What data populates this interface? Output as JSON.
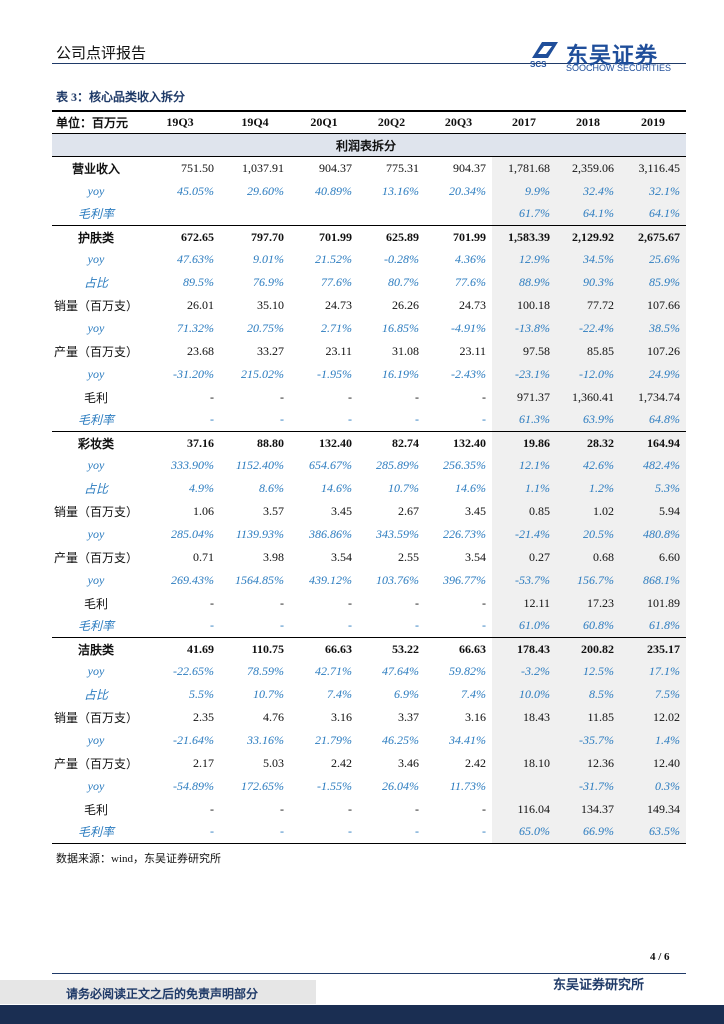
{
  "header": {
    "title": "公司点评报告",
    "logo_mark": "SCS",
    "logo_name": "东吴证券",
    "logo_en": "SOOCHOW SECURITIES"
  },
  "table": {
    "caption": "表 3：核心品类收入拆分",
    "columns": [
      "单位：百万元",
      "19Q3",
      "19Q4",
      "20Q1",
      "20Q2",
      "20Q3",
      "2017",
      "2018",
      "2019"
    ],
    "section": "利润表拆分",
    "rows": [
      {
        "label": "营业收入",
        "style": "bold-label",
        "cells": [
          "751.50",
          "1,037.91",
          "904.37",
          "775.31",
          "904.37",
          "1,781.68",
          "2,359.06",
          "3,116.45"
        ]
      },
      {
        "label": "yoy",
        "style": "italic",
        "cells": [
          "45.05%",
          "29.60%",
          "40.89%",
          "13.16%",
          "20.34%",
          "9.9%",
          "32.4%",
          "32.1%"
        ]
      },
      {
        "label": "毛利率",
        "style": "italic",
        "cells": [
          null,
          null,
          null,
          null,
          null,
          "61.7%",
          "64.1%",
          "64.1%"
        ]
      },
      {
        "label": "护肤类",
        "style": "bold",
        "cells": [
          "672.65",
          "797.70",
          "701.99",
          "625.89",
          "701.99",
          "1,583.39",
          "2,129.92",
          "2,675.67"
        ]
      },
      {
        "label": "yoy",
        "style": "italic",
        "cells": [
          "47.63%",
          "9.01%",
          "21.52%",
          "-0.28%",
          "4.36%",
          "12.9%",
          "34.5%",
          "25.6%"
        ]
      },
      {
        "label": "占比",
        "style": "italic",
        "cells": [
          "89.5%",
          "76.9%",
          "77.6%",
          "80.7%",
          "77.6%",
          "88.9%",
          "90.3%",
          "85.9%"
        ]
      },
      {
        "label": "销量（百万支）",
        "style": "plain",
        "cells": [
          "26.01",
          "35.10",
          "24.73",
          "26.26",
          "24.73",
          "100.18",
          "77.72",
          "107.66"
        ]
      },
      {
        "label": "yoy",
        "style": "italic",
        "cells": [
          "71.32%",
          "20.75%",
          "2.71%",
          "16.85%",
          "-4.91%",
          "-13.8%",
          "-22.4%",
          "38.5%"
        ]
      },
      {
        "label": "产量（百万支）",
        "style": "plain",
        "cells": [
          "23.68",
          "33.27",
          "23.11",
          "31.08",
          "23.11",
          "97.58",
          "85.85",
          "107.26"
        ]
      },
      {
        "label": "yoy",
        "style": "italic",
        "cells": [
          "-31.20%",
          "215.02%",
          "-1.95%",
          "16.19%",
          "-2.43%",
          "-23.1%",
          "-12.0%",
          "24.9%"
        ]
      },
      {
        "label": "毛利",
        "style": "plain",
        "cells": [
          "-",
          "-",
          "-",
          "-",
          "-",
          "971.37",
          "1,360.41",
          "1,734.74"
        ]
      },
      {
        "label": "毛利率",
        "style": "italic",
        "cells": [
          "-",
          "-",
          "-",
          "-",
          "-",
          "61.3%",
          "63.9%",
          "64.8%"
        ]
      },
      {
        "label": "彩妆类",
        "style": "bold",
        "cells": [
          "37.16",
          "88.80",
          "132.40",
          "82.74",
          "132.40",
          "19.86",
          "28.32",
          "164.94"
        ]
      },
      {
        "label": "yoy",
        "style": "italic",
        "cells": [
          "333.90%",
          "1152.40%",
          "654.67%",
          "285.89%",
          "256.35%",
          "12.1%",
          "42.6%",
          "482.4%"
        ]
      },
      {
        "label": "占比",
        "style": "italic",
        "cells": [
          "4.9%",
          "8.6%",
          "14.6%",
          "10.7%",
          "14.6%",
          "1.1%",
          "1.2%",
          "5.3%"
        ]
      },
      {
        "label": "销量（百万支）",
        "style": "plain",
        "cells": [
          "1.06",
          "3.57",
          "3.45",
          "2.67",
          "3.45",
          "0.85",
          "1.02",
          "5.94"
        ]
      },
      {
        "label": "yoy",
        "style": "italic",
        "cells": [
          "285.04%",
          "1139.93%",
          "386.86%",
          "343.59%",
          "226.73%",
          "-21.4%",
          "20.5%",
          "480.8%"
        ]
      },
      {
        "label": "产量（百万支）",
        "style": "plain",
        "cells": [
          "0.71",
          "3.98",
          "3.54",
          "2.55",
          "3.54",
          "0.27",
          "0.68",
          "6.60"
        ]
      },
      {
        "label": "yoy",
        "style": "italic",
        "cells": [
          "269.43%",
          "1564.85%",
          "439.12%",
          "103.76%",
          "396.77%",
          "-53.7%",
          "156.7%",
          "868.1%"
        ]
      },
      {
        "label": "毛利",
        "style": "plain",
        "cells": [
          "-",
          "-",
          "-",
          "-",
          "-",
          "12.11",
          "17.23",
          "101.89"
        ]
      },
      {
        "label": "毛利率",
        "style": "italic",
        "cells": [
          "-",
          "-",
          "-",
          "-",
          "-",
          "61.0%",
          "60.8%",
          "61.8%"
        ]
      },
      {
        "label": "洁肤类",
        "style": "bold",
        "cells": [
          "41.69",
          "110.75",
          "66.63",
          "53.22",
          "66.63",
          "178.43",
          "200.82",
          "235.17"
        ]
      },
      {
        "label": "yoy",
        "style": "italic",
        "cells": [
          "-22.65%",
          "78.59%",
          "42.71%",
          "47.64%",
          "59.82%",
          "-3.2%",
          "12.5%",
          "17.1%"
        ]
      },
      {
        "label": "占比",
        "style": "italic",
        "cells": [
          "5.5%",
          "10.7%",
          "7.4%",
          "6.9%",
          "7.4%",
          "10.0%",
          "8.5%",
          "7.5%"
        ]
      },
      {
        "label": "销量（百万支）",
        "style": "plain",
        "cells": [
          "2.35",
          "4.76",
          "3.16",
          "3.37",
          "3.16",
          "18.43",
          "11.85",
          "12.02"
        ]
      },
      {
        "label": "yoy",
        "style": "italic",
        "cells": [
          "-21.64%",
          "33.16%",
          "21.79%",
          "46.25%",
          "34.41%",
          null,
          "-35.7%",
          "1.4%"
        ]
      },
      {
        "label": "产量（百万支）",
        "style": "plain",
        "cells": [
          "2.17",
          "5.03",
          "2.42",
          "3.46",
          "2.42",
          "18.10",
          "12.36",
          "12.40"
        ]
      },
      {
        "label": "yoy",
        "style": "italic",
        "cells": [
          "-54.89%",
          "172.65%",
          "-1.55%",
          "26.04%",
          "11.73%",
          null,
          "-31.7%",
          "0.3%"
        ]
      },
      {
        "label": "毛利",
        "style": "plain",
        "cells": [
          "-",
          "-",
          "-",
          "-",
          "-",
          "116.04",
          "134.37",
          "149.34"
        ]
      },
      {
        "label": "毛利率",
        "style": "italic",
        "cells": [
          "-",
          "-",
          "-",
          "-",
          "-",
          "65.0%",
          "66.9%",
          "63.5%"
        ]
      }
    ],
    "source": "数据来源：wind，东吴证券研究所"
  },
  "footer": {
    "page": "4 / 6",
    "disclaimer": "请务必阅读正文之后的免责声明部分",
    "org": "东吴证券研究所"
  }
}
